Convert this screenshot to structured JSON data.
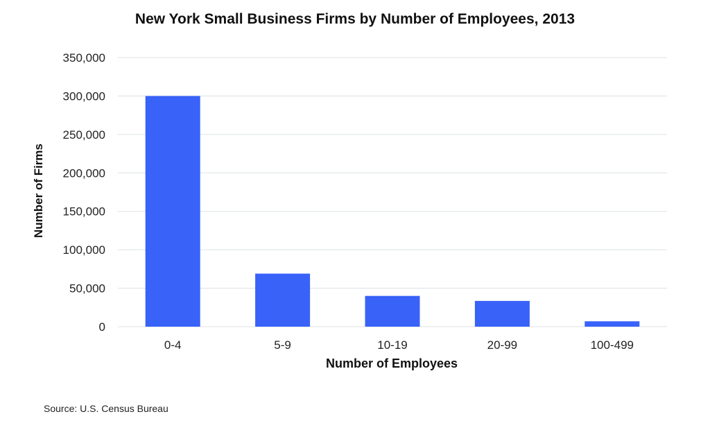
{
  "chart_data": {
    "type": "bar",
    "title": "New York Small Business Firms by Number of Employees, 2013",
    "xlabel": "Number of Employees",
    "ylabel": "Number of Firms",
    "categories": [
      "0-4",
      "5-9",
      "10-19",
      "20-99",
      "100-499"
    ],
    "values": [
      300000,
      69000,
      40000,
      33500,
      7000
    ],
    "ylim": [
      0,
      350000
    ],
    "yticks": [
      0,
      50000,
      100000,
      150000,
      200000,
      250000,
      300000,
      350000
    ],
    "ytick_labels": [
      "0",
      "50,000",
      "100,000",
      "150,000",
      "200,000",
      "250,000",
      "300,000",
      "350,000"
    ],
    "grid": true,
    "legend": "none",
    "bar_color": "#3862f8",
    "source": "Source: U.S. Census Bureau"
  }
}
